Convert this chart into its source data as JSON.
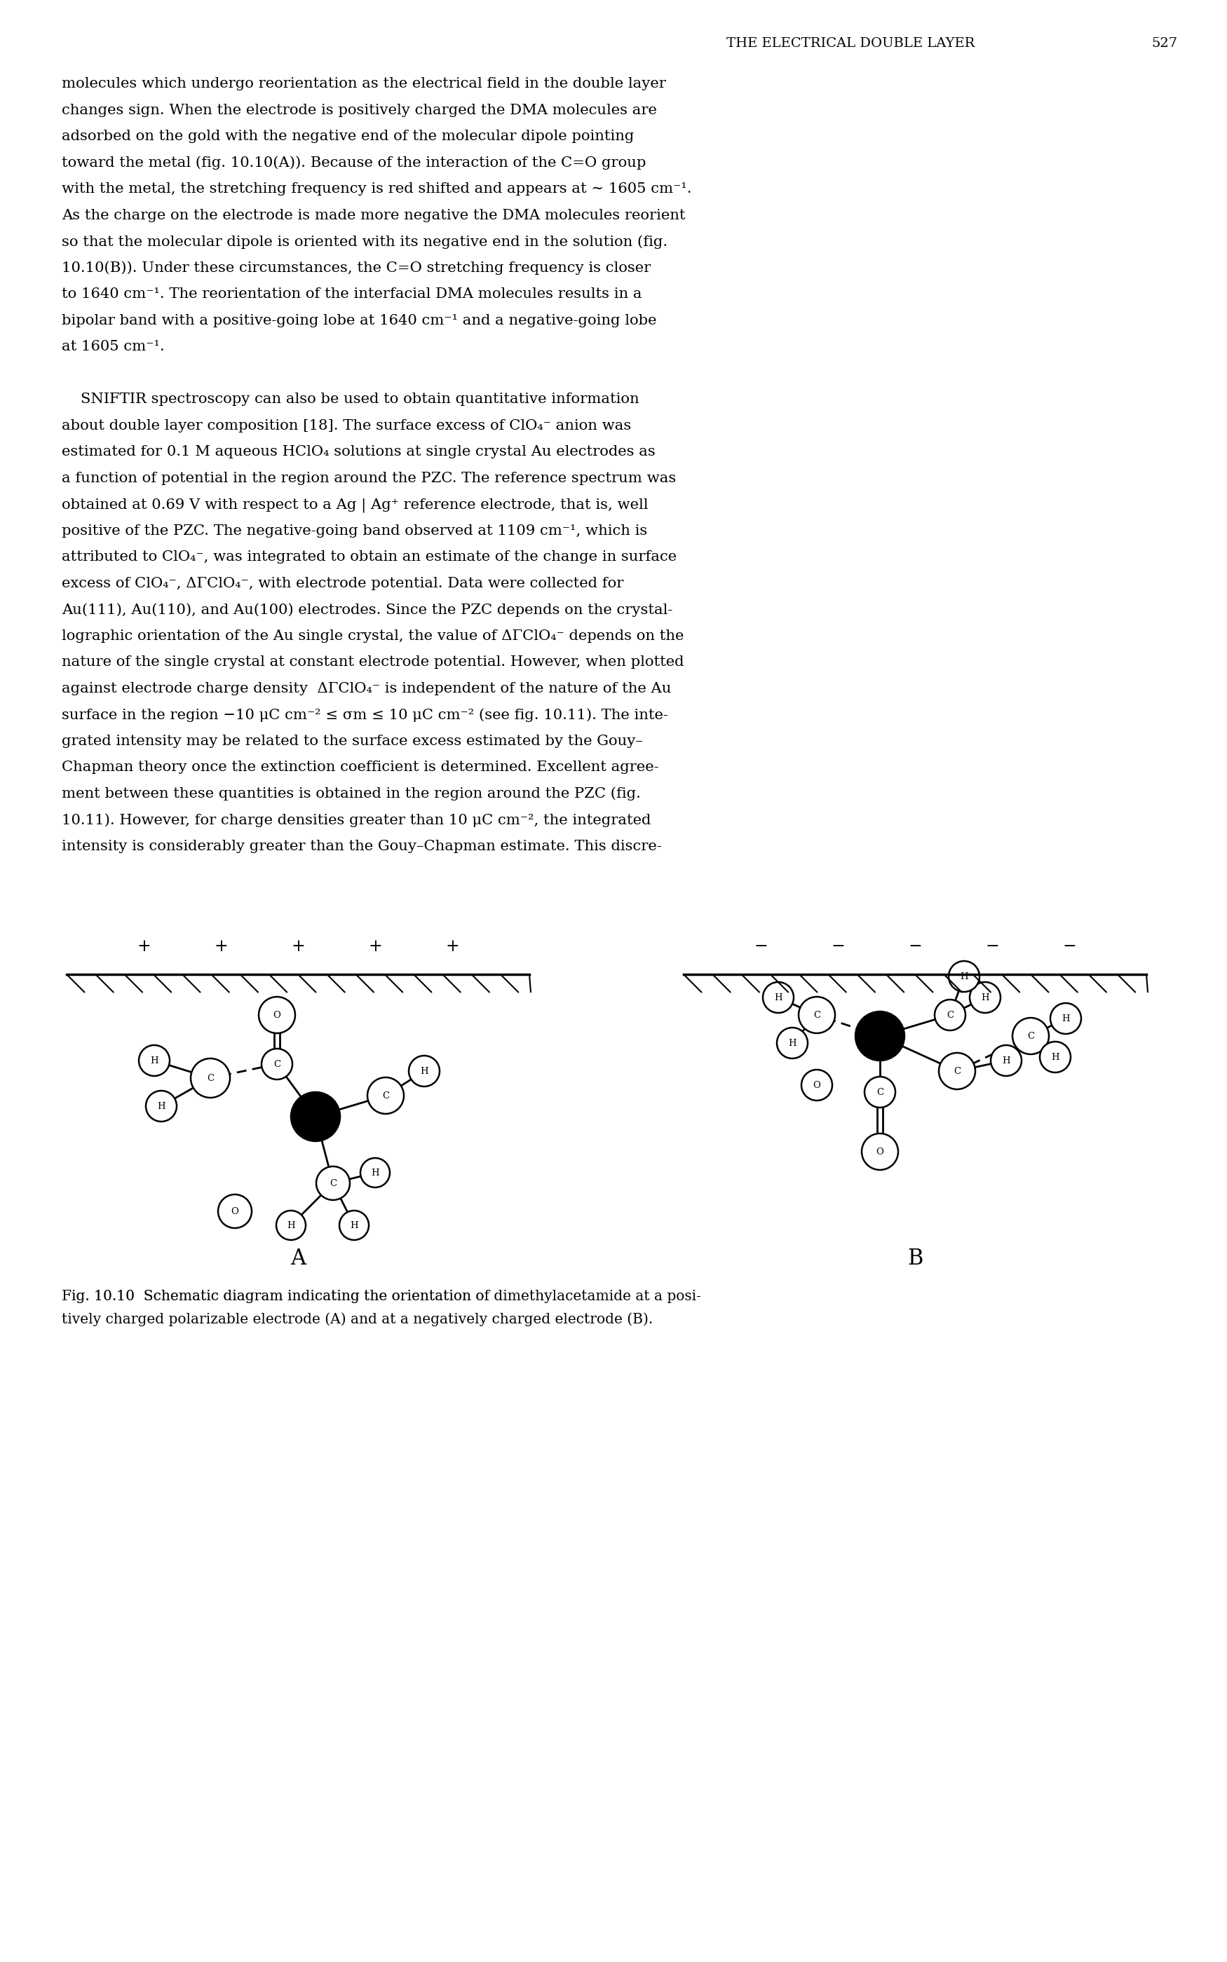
{
  "header_text": "THE ELECTRICAL DOUBLE LAYER",
  "header_page": "527",
  "bg_color": "#ffffff",
  "text_color": "#000000",
  "label_A": "A",
  "label_B": "B",
  "caption_bold_part": "dimethylacetamide",
  "caption": "Fig. 10.10  Schematic diagram indicating the orientation of dimethylacetamide at a posi-\ntively charged polarizable electrode (A) and at a negatively charged electrode (B).",
  "body_lines": [
    "molecules which undergo reorientation as the electrical field in the double layer",
    "changes sign. When the electrode is positively charged the DMA molecules are",
    "adsorbed on the gold with the negative end of the molecular dipole pointing",
    "toward the metal (fig. 10.10(A)). Because of the interaction of the C=O group",
    "with the metal, the stretching frequency is red shifted and appears at ∼ 1605 cm⁻¹.",
    "As the charge on the electrode is made more negative the DMA molecules reorient",
    "so that the molecular dipole is oriented with its negative end in the solution (fig.",
    "10.10(B)). Under these circumstances, the C=O stretching frequency is closer",
    "to 1640 cm⁻¹. The reorientation of the interfacial DMA molecules results in a",
    "bipolar band with a positive-going lobe at 1640 cm⁻¹ and a negative-going lobe",
    "at 1605 cm⁻¹.",
    "",
    "    SNIFTIR spectroscopy can also be used to obtain quantitative information",
    "about double layer composition [18]. The surface excess of ClO₄⁻ anion was",
    "estimated for 0.1 M aqueous HClO₄ solutions at single crystal Au electrodes as",
    "a function of potential in the region around the PZC. The reference spectrum was",
    "obtained at 0.69 V with respect to a Ag | Ag⁺ reference electrode, that is, well",
    "positive of the PZC. The negative-going band observed at 1109 cm⁻¹, which is",
    "attributed to ClO₄⁻, was integrated to obtain an estimate of the change in surface",
    "excess of ClO₄⁻, ΔΓClO₄⁻, with electrode potential. Data were collected for",
    "Au(111), Au(110), and Au(100) electrodes. Since the PZC depends on the crystal-",
    "lographic orientation of the Au single crystal, the value of ΔΓClO₄⁻ depends on the",
    "nature of the single crystal at constant electrode potential. However, when plotted",
    "against electrode charge density  ΔΓClO₄⁻ is independent of the nature of the Au",
    "surface in the region −10 μC cm⁻² ≤ σm ≤ 10 μC cm⁻² (see fig. 10.11). The inte-",
    "grated intensity may be related to the surface excess estimated by the Gouy–",
    "Chapman theory once the extinction coefficient is determined. Excellent agree-",
    "ment between these quantities is obtained in the region around the PZC (fig.",
    "10.11). However, for charge densities greater than 10 μC cm⁻², the integrated",
    "intensity is considerably greater than the Gouy–Chapman estimate. This discre-"
  ]
}
